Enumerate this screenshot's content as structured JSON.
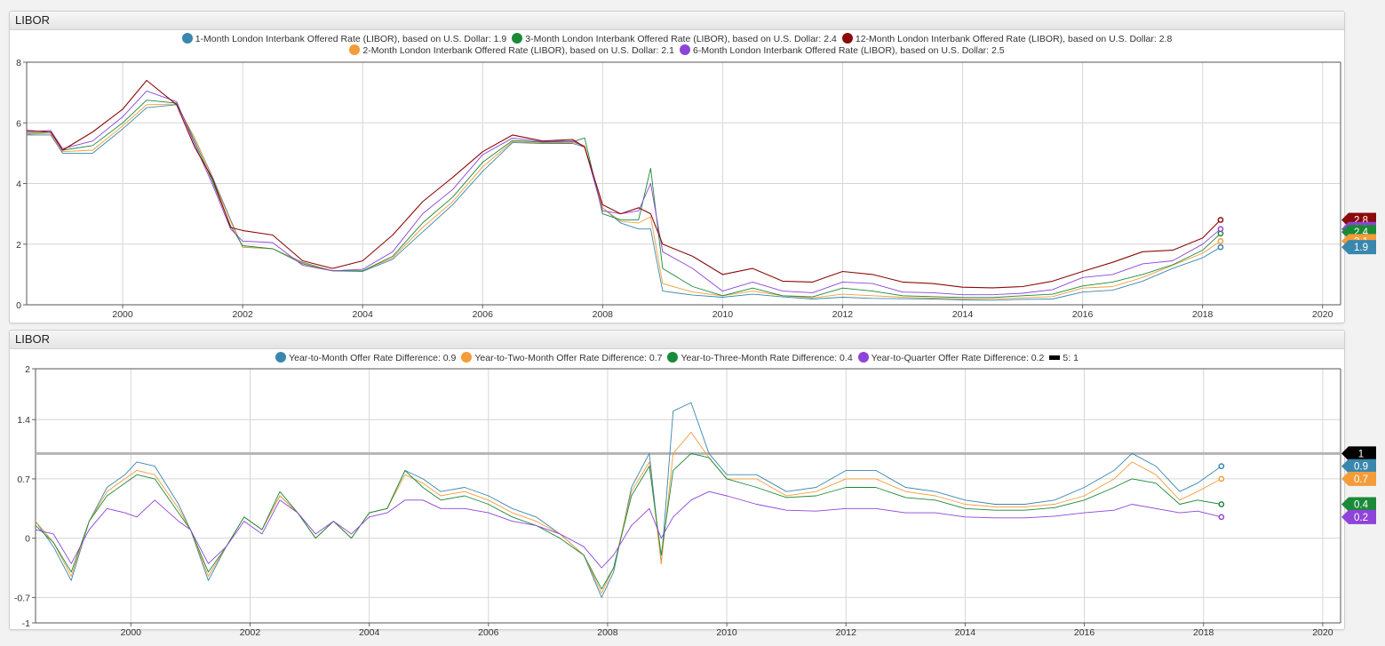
{
  "panels": [
    {
      "title": "LIBOR",
      "legend_rows": [
        [
          {
            "label": "1-Month London Interbank Offered Rate (LIBOR), based on U.S. Dollar: 1.9",
            "color": "#3a87ad"
          },
          {
            "label": "3-Month London Interbank Offered Rate (LIBOR), based on U.S. Dollar: 2.4",
            "color": "#1a8a38"
          },
          {
            "label": "12-Month London Interbank Offered Rate (LIBOR), based on U.S. Dollar: 2.8",
            "color": "#8b0a0a"
          }
        ],
        [
          {
            "label": "2-Month London Interbank Offered Rate (LIBOR), based on U.S. Dollar: 2.1",
            "color": "#f39c3a"
          },
          {
            "label": "6-Month London Interbank Offered Rate (LIBOR), based on U.S. Dollar: 2.5",
            "color": "#8e44d8"
          }
        ]
      ]
    },
    {
      "title": "LIBOR",
      "legend_rows": [
        [
          {
            "label": "Year-to-Month Offer Rate Difference: 0.9",
            "color": "#3a87ad"
          },
          {
            "label": "Year-to-Two-Month Offer Rate Difference: 0.7",
            "color": "#f39c3a"
          },
          {
            "label": "Year-to-Three-Month Rate Difference: 0.4",
            "color": "#1a8a38"
          },
          {
            "label": "Year-to-Quarter Offer Rate Difference: 0.2",
            "color": "#8e44d8"
          },
          {
            "label": "5: 1",
            "color": "#000000",
            "shape": "rect"
          }
        ]
      ]
    }
  ],
  "chart_data": [
    {
      "type": "line",
      "title": "LIBOR",
      "xlim": [
        1998.4,
        2020.3
      ],
      "ylim": [
        0,
        8
      ],
      "x_ticks": [
        "2000",
        "2002",
        "2004",
        "2006",
        "2008",
        "2010",
        "2012",
        "2014",
        "2016",
        "2018",
        "2020"
      ],
      "y_ticks": [
        "0",
        "2",
        "4",
        "6",
        "8"
      ],
      "grid": true,
      "x": [
        1998.4,
        1998.8,
        1999.0,
        1999.5,
        2000.0,
        2000.4,
        2000.9,
        2001.2,
        2001.5,
        2001.8,
        2002.0,
        2002.5,
        2003.0,
        2003.5,
        2004.0,
        2004.5,
        2005.0,
        2005.5,
        2006.0,
        2006.5,
        2007.0,
        2007.5,
        2007.7,
        2008.0,
        2008.3,
        2008.6,
        2008.8,
        2009.0,
        2009.5,
        2010.0,
        2010.5,
        2011.0,
        2011.5,
        2012.0,
        2012.5,
        2013.0,
        2013.5,
        2014.0,
        2014.5,
        2015.0,
        2015.5,
        2016.0,
        2016.5,
        2017.0,
        2017.5,
        2018.0,
        2018.3
      ],
      "series": [
        {
          "name": "1-Month London Interbank Offered Rate (LIBOR), based on U.S. Dollar",
          "color": "#3a87ad",
          "width": 0.9,
          "values": [
            5.6,
            5.6,
            5.0,
            5.0,
            5.8,
            6.5,
            6.6,
            5.5,
            4.2,
            2.8,
            1.9,
            1.85,
            1.4,
            1.12,
            1.1,
            1.5,
            2.4,
            3.3,
            4.4,
            5.35,
            5.32,
            5.32,
            5.2,
            3.2,
            2.7,
            2.5,
            2.5,
            0.45,
            0.32,
            0.25,
            0.35,
            0.26,
            0.19,
            0.25,
            0.21,
            0.2,
            0.19,
            0.16,
            0.15,
            0.18,
            0.19,
            0.42,
            0.48,
            0.78,
            1.2,
            1.55,
            1.9
          ]
        },
        {
          "name": "2-Month London Interbank Offered Rate (LIBOR), based on U.S. Dollar",
          "color": "#f39c3a",
          "width": 0.9,
          "values": [
            5.62,
            5.65,
            5.05,
            5.1,
            5.9,
            6.6,
            6.62,
            5.5,
            4.15,
            2.75,
            1.9,
            1.85,
            1.38,
            1.13,
            1.12,
            1.55,
            2.55,
            3.4,
            4.55,
            5.38,
            5.34,
            5.35,
            5.25,
            3.2,
            2.75,
            2.7,
            2.9,
            0.7,
            0.42,
            0.3,
            0.45,
            0.3,
            0.23,
            0.35,
            0.3,
            0.25,
            0.22,
            0.2,
            0.2,
            0.23,
            0.27,
            0.55,
            0.6,
            0.9,
            1.3,
            1.7,
            2.1
          ]
        },
        {
          "name": "3-Month London Interbank Offered Rate (LIBOR), based on U.S. Dollar",
          "color": "#1a8a38",
          "width": 0.9,
          "values": [
            5.65,
            5.7,
            5.1,
            5.25,
            6.0,
            6.75,
            6.65,
            5.4,
            4.05,
            2.6,
            1.95,
            1.85,
            1.35,
            1.12,
            1.12,
            1.6,
            2.7,
            3.55,
            4.7,
            5.42,
            5.36,
            5.38,
            5.5,
            3.0,
            2.8,
            2.8,
            4.5,
            1.2,
            0.6,
            0.3,
            0.55,
            0.3,
            0.26,
            0.55,
            0.45,
            0.3,
            0.27,
            0.24,
            0.24,
            0.3,
            0.35,
            0.62,
            0.75,
            1.0,
            1.32,
            1.8,
            2.35
          ]
        },
        {
          "name": "6-Month London Interbank Offered Rate (LIBOR), based on U.S. Dollar",
          "color": "#8e44d8",
          "width": 0.9,
          "values": [
            5.7,
            5.75,
            5.15,
            5.4,
            6.2,
            7.05,
            6.7,
            5.3,
            3.95,
            2.5,
            2.1,
            2.05,
            1.3,
            1.12,
            1.17,
            1.75,
            3.0,
            3.8,
            4.95,
            5.5,
            5.38,
            5.4,
            5.2,
            3.1,
            3.0,
            3.1,
            4.0,
            1.75,
            1.2,
            0.45,
            0.75,
            0.45,
            0.4,
            0.75,
            0.7,
            0.42,
            0.4,
            0.33,
            0.33,
            0.38,
            0.5,
            0.9,
            1.0,
            1.35,
            1.45,
            2.0,
            2.5
          ]
        },
        {
          "name": "12-Month London Interbank Offered Rate (LIBOR), based on U.S. Dollar",
          "color": "#8b0a0a",
          "width": 1.1,
          "values": [
            5.75,
            5.7,
            5.1,
            5.7,
            6.45,
            7.4,
            6.6,
            5.2,
            4.15,
            2.55,
            2.45,
            2.3,
            1.45,
            1.2,
            1.45,
            2.3,
            3.4,
            4.2,
            5.05,
            5.6,
            5.4,
            5.45,
            5.2,
            3.3,
            3.0,
            3.2,
            3.0,
            2.0,
            1.6,
            1.0,
            1.2,
            0.78,
            0.75,
            1.1,
            1.0,
            0.75,
            0.7,
            0.58,
            0.56,
            0.6,
            0.78,
            1.1,
            1.4,
            1.75,
            1.8,
            2.2,
            2.8
          ]
        }
      ],
      "end_tags": [
        {
          "text": "2.8",
          "color": "#8b0a0a",
          "y": 2.8
        },
        {
          "text": "2.5",
          "color": "#8e44d8",
          "y": 2.5
        },
        {
          "text": "2.4",
          "color": "#1a8a38",
          "y": 2.4
        },
        {
          "text": "2.1",
          "color": "#f39c3a",
          "y": 2.1
        },
        {
          "text": "1.9",
          "color": "#3a87ad",
          "y": 1.9
        }
      ]
    },
    {
      "type": "line",
      "title": "LIBOR",
      "xlim": [
        1998.4,
        2020.3
      ],
      "ylim": [
        -1,
        2
      ],
      "x_ticks": [
        "2000",
        "2002",
        "2004",
        "2006",
        "2008",
        "2010",
        "2012",
        "2014",
        "2016",
        "2018",
        "2020"
      ],
      "y_ticks": [
        "2",
        "1.4",
        "0.7",
        "0",
        "-0.7",
        "-1"
      ],
      "grid": true,
      "x": [
        1998.4,
        1998.7,
        1999.0,
        1999.3,
        1999.6,
        1999.9,
        2000.1,
        2000.4,
        2000.8,
        2001.0,
        2001.3,
        2001.6,
        2001.9,
        2002.2,
        2002.5,
        2002.8,
        2003.1,
        2003.4,
        2003.7,
        2004.0,
        2004.3,
        2004.6,
        2004.9,
        2005.2,
        2005.6,
        2006.0,
        2006.4,
        2006.8,
        2007.2,
        2007.6,
        2007.9,
        2008.1,
        2008.4,
        2008.7,
        2008.9,
        2009.1,
        2009.4,
        2009.7,
        2010.0,
        2010.5,
        2011.0,
        2011.5,
        2012.0,
        2012.5,
        2013.0,
        2013.5,
        2014.0,
        2014.5,
        2015.0,
        2015.5,
        2016.0,
        2016.5,
        2016.8,
        2017.2,
        2017.6,
        2017.9,
        2018.3
      ],
      "series": [
        {
          "name": "Year-to-Month Offer Rate Difference",
          "color": "#3a87ad",
          "width": 0.9,
          "values": [
            0.2,
            -0.1,
            -0.5,
            0.2,
            0.6,
            0.75,
            0.9,
            0.85,
            0.4,
            0.1,
            -0.5,
            -0.1,
            0.25,
            0.1,
            0.5,
            0.3,
            0.0,
            0.2,
            0.0,
            0.3,
            0.35,
            0.8,
            0.7,
            0.55,
            0.6,
            0.5,
            0.35,
            0.25,
            0.05,
            -0.2,
            -0.7,
            -0.4,
            0.6,
            1.0,
            -0.3,
            1.5,
            1.6,
            1.0,
            0.75,
            0.75,
            0.55,
            0.6,
            0.8,
            0.8,
            0.6,
            0.55,
            0.45,
            0.4,
            0.4,
            0.45,
            0.6,
            0.8,
            1.0,
            0.85,
            0.55,
            0.65,
            0.85
          ]
        },
        {
          "name": "Year-to-Two-Month Offer Rate Difference",
          "color": "#f39c3a",
          "width": 0.9,
          "values": [
            0.2,
            -0.05,
            -0.45,
            0.2,
            0.55,
            0.7,
            0.8,
            0.75,
            0.35,
            0.1,
            -0.45,
            -0.1,
            0.25,
            0.1,
            0.5,
            0.3,
            0.0,
            0.2,
            0.0,
            0.3,
            0.35,
            0.75,
            0.65,
            0.5,
            0.55,
            0.45,
            0.3,
            0.2,
            0.05,
            -0.2,
            -0.65,
            -0.35,
            0.55,
            0.9,
            -0.3,
            1.0,
            1.25,
            0.95,
            0.7,
            0.7,
            0.5,
            0.55,
            0.7,
            0.7,
            0.55,
            0.5,
            0.4,
            0.37,
            0.37,
            0.4,
            0.5,
            0.7,
            0.9,
            0.75,
            0.45,
            0.55,
            0.7
          ]
        },
        {
          "name": "Year-to-Three-Month Rate Difference",
          "color": "#1a8a38",
          "width": 0.9,
          "values": [
            0.15,
            -0.05,
            -0.4,
            0.2,
            0.5,
            0.65,
            0.75,
            0.7,
            0.3,
            0.1,
            -0.4,
            -0.1,
            0.25,
            0.1,
            0.55,
            0.3,
            0.0,
            0.2,
            0.0,
            0.3,
            0.35,
            0.8,
            0.6,
            0.45,
            0.5,
            0.4,
            0.25,
            0.15,
            0.0,
            -0.2,
            -0.6,
            -0.35,
            0.5,
            0.85,
            -0.2,
            0.8,
            1.0,
            0.95,
            0.7,
            0.6,
            0.48,
            0.5,
            0.6,
            0.6,
            0.48,
            0.45,
            0.35,
            0.33,
            0.33,
            0.36,
            0.45,
            0.6,
            0.7,
            0.65,
            0.4,
            0.45,
            0.4
          ]
        },
        {
          "name": "Year-to-Quarter Offer Rate Difference",
          "color": "#8e44d8",
          "width": 0.9,
          "values": [
            0.1,
            0.05,
            -0.3,
            0.1,
            0.35,
            0.3,
            0.25,
            0.45,
            0.2,
            0.1,
            -0.3,
            -0.1,
            0.2,
            0.05,
            0.45,
            0.3,
            0.05,
            0.2,
            0.05,
            0.25,
            0.3,
            0.45,
            0.45,
            0.35,
            0.35,
            0.3,
            0.2,
            0.15,
            0.05,
            -0.1,
            -0.35,
            -0.2,
            0.15,
            0.35,
            0.0,
            0.25,
            0.45,
            0.55,
            0.5,
            0.4,
            0.33,
            0.32,
            0.35,
            0.35,
            0.3,
            0.3,
            0.25,
            0.24,
            0.24,
            0.26,
            0.3,
            0.33,
            0.4,
            0.35,
            0.3,
            0.32,
            0.25
          ]
        }
      ],
      "reference_line": {
        "name": "5",
        "value": 1,
        "color": "#b4b4b4"
      },
      "end_tags": [
        {
          "text": "1",
          "color": "#000000",
          "y": 1
        },
        {
          "text": "0.9",
          "color": "#3a87ad",
          "y": 0.85
        },
        {
          "text": "0.7",
          "color": "#f39c3a",
          "y": 0.7
        },
        {
          "text": "0.4",
          "color": "#1a8a38",
          "y": 0.4
        },
        {
          "text": "0.2",
          "color": "#8e44d8",
          "y": 0.25
        }
      ]
    }
  ]
}
